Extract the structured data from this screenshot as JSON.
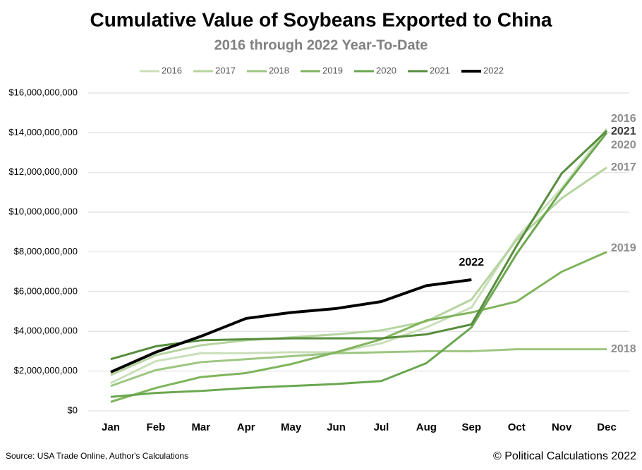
{
  "chart_data": {
    "type": "line",
    "title": "Cumulative Value of Soybeans Exported to China",
    "subtitle": "2016 through 2022 Year-To-Date",
    "source": "Source: USA Trade Online, Author's Calculations",
    "credit": "© Political Calculations 2022",
    "categories": [
      "Jan",
      "Feb",
      "Mar",
      "Apr",
      "May",
      "Jun",
      "Jul",
      "Aug",
      "Sep",
      "Oct",
      "Nov",
      "Dec"
    ],
    "ylim": [
      0,
      16000000000
    ],
    "yticks": [
      {
        "value": 0,
        "label": "$0"
      },
      {
        "value": 2000000000,
        "label": "$2,000,000,000"
      },
      {
        "value": 4000000000,
        "label": "$4,000,000,000"
      },
      {
        "value": 6000000000,
        "label": "$6,000,000,000"
      },
      {
        "value": 8000000000,
        "label": "$8,000,000,000"
      },
      {
        "value": 10000000000,
        "label": "$10,000,000,000"
      },
      {
        "value": 12000000000,
        "label": "$12,000,000,000"
      },
      {
        "value": 14000000000,
        "label": "$14,000,000,000"
      },
      {
        "value": 16000000000,
        "label": "$16,000,000,000"
      }
    ],
    "grid": true,
    "legend": "top",
    "series": [
      {
        "name": "2016",
        "color": "#c9dfb9",
        "values": [
          1400000000,
          2500000000,
          2900000000,
          2900000000,
          2950000000,
          2950000000,
          3400000000,
          4200000000,
          5200000000,
          8700000000,
          11200000000,
          14200000000
        ]
      },
      {
        "name": "2017",
        "color": "#b6d49f",
        "values": [
          1800000000,
          2800000000,
          3300000000,
          3550000000,
          3700000000,
          3850000000,
          4050000000,
          4500000000,
          5600000000,
          8600000000,
          10700000000,
          12250000000
        ]
      },
      {
        "name": "2018",
        "color": "#9dc681",
        "values": [
          1250000000,
          2050000000,
          2450000000,
          2600000000,
          2750000000,
          2900000000,
          2950000000,
          3000000000,
          3000000000,
          3100000000,
          3100000000,
          3100000000
        ]
      },
      {
        "name": "2019",
        "color": "#80b45c",
        "values": [
          450000000,
          1150000000,
          1700000000,
          1900000000,
          2350000000,
          2950000000,
          3600000000,
          4550000000,
          4950000000,
          5500000000,
          7000000000,
          8000000000
        ]
      },
      {
        "name": "2020",
        "color": "#6aa74f",
        "values": [
          700000000,
          900000000,
          1000000000,
          1150000000,
          1250000000,
          1350000000,
          1500000000,
          2400000000,
          4200000000,
          7900000000,
          11100000000,
          14000000000
        ]
      },
      {
        "name": "2021",
        "color": "#568d3c",
        "values": [
          2600000000,
          3250000000,
          3550000000,
          3600000000,
          3650000000,
          3650000000,
          3650000000,
          3850000000,
          4350000000,
          8300000000,
          11950000000,
          14100000000
        ]
      },
      {
        "name": "2022",
        "color": "#000000",
        "values": [
          1950000000,
          2950000000,
          3750000000,
          4650000000,
          4950000000,
          5150000000,
          5500000000,
          6300000000,
          6600000000,
          null,
          null,
          null
        ]
      }
    ]
  }
}
